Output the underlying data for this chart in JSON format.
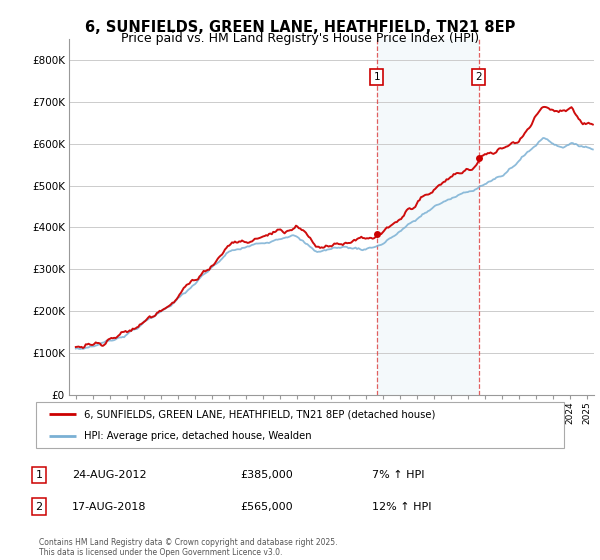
{
  "title": "6, SUNFIELDS, GREEN LANE, HEATHFIELD, TN21 8EP",
  "subtitle": "Price paid vs. HM Land Registry's House Price Index (HPI)",
  "title_fontsize": 10.5,
  "subtitle_fontsize": 9,
  "legend_label_red": "6, SUNFIELDS, GREEN LANE, HEATHFIELD, TN21 8EP (detached house)",
  "legend_label_blue": "HPI: Average price, detached house, Wealden",
  "red_color": "#cc0000",
  "blue_color": "#7ab0d4",
  "annotation1": {
    "label": "1",
    "date": "24-AUG-2012",
    "price": "£385,000",
    "pct": "7% ↑ HPI"
  },
  "annotation2": {
    "label": "2",
    "date": "17-AUG-2018",
    "price": "£565,000",
    "pct": "12% ↑ HPI"
  },
  "footer": "Contains HM Land Registry data © Crown copyright and database right 2025.\nThis data is licensed under the Open Government Licence v3.0.",
  "ylim": [
    0,
    850000
  ],
  "yticks": [
    0,
    100000,
    200000,
    300000,
    400000,
    500000,
    600000,
    700000,
    800000
  ],
  "ytick_labels": [
    "£0",
    "£100K",
    "£200K",
    "£300K",
    "£400K",
    "£500K",
    "£600K",
    "£700K",
    "£800K"
  ],
  "xlim_start": 1994.6,
  "xlim_end": 2025.4,
  "vline1_x": 2012.65,
  "vline2_x": 2018.63,
  "shade_x1": 2012.65,
  "shade_x2": 2018.63
}
